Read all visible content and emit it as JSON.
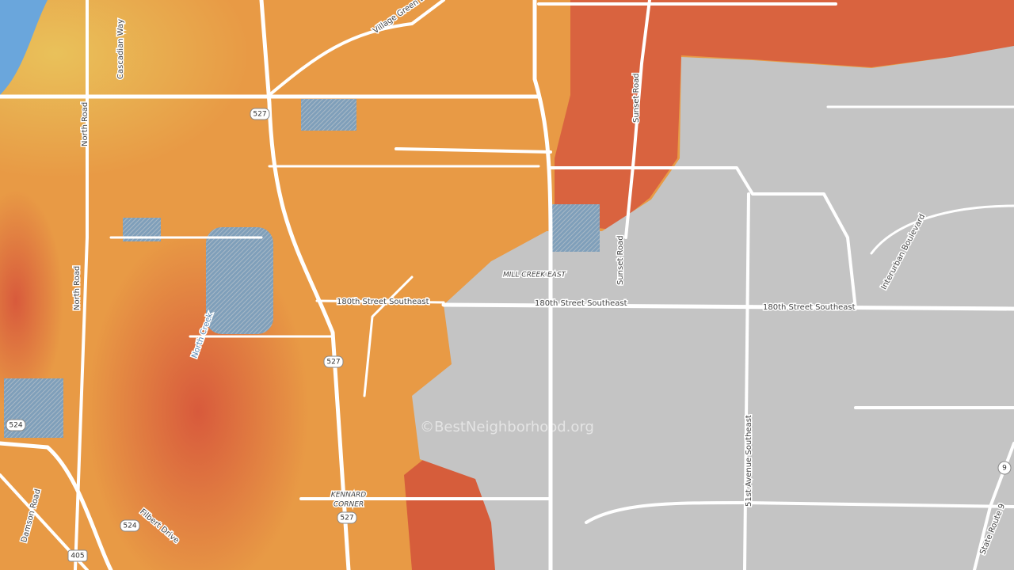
{
  "labels": {
    "village_green": "Village Green Drive",
    "cascadian": "Cascadian Way",
    "north_road_1": "North Road",
    "north_road_2": "North Road",
    "sunset_1": "Sunset Road",
    "sunset_2": "Sunset Road",
    "street180_1": "180th Street Southeast",
    "street180_2": "180th Street Southeast",
    "street180_3": "180th Street Southeast",
    "mill_creek": "MILL CREEK EAST",
    "north_creek": "North Creek",
    "interurban": "Interurban Boulevard",
    "ave51": "51st Avenue Southeast",
    "kennard_1": "KENNARD",
    "kennard_2": "CORNER",
    "damson": "Damson Road",
    "filbert": "Filbert Drive",
    "route9": "State Route 9"
  },
  "shields": {
    "s527_1": "527",
    "s527_2": "527",
    "s527_3": "527",
    "s524_1": "524",
    "s524_2": "524",
    "s405": "405",
    "s9": "9"
  },
  "watermark": "©BestNeighborhood.org"
}
